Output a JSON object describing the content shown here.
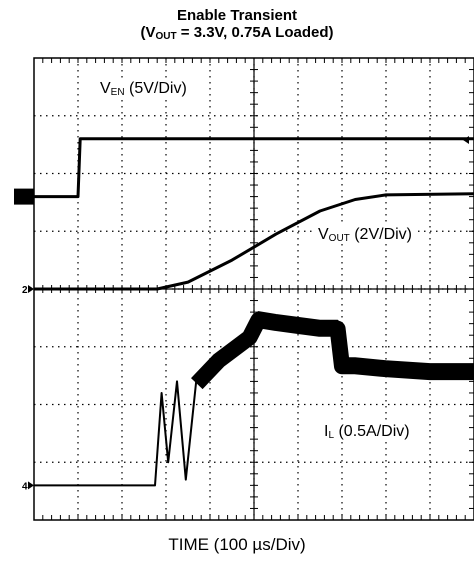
{
  "chart_data": {
    "type": "line",
    "title_line1": "Enable Transient",
    "title_line2": {
      "pre": "(V",
      "sub": "OUT",
      "post": " = 3.3V, 0.75A Loaded)"
    },
    "xlabel": "TIME (100 µs/Div)",
    "x_units": "div",
    "xlim": [
      0,
      10
    ],
    "grid": true,
    "channel_markers": [
      "2",
      "4"
    ],
    "series": [
      {
        "name": {
          "main": "V",
          "sub": "EN",
          "rest": " (5V/Div)"
        },
        "color": "#000000",
        "x": [
          0,
          1.0,
          1.05,
          10
        ],
        "y": [
          0,
          0,
          1.0,
          1.0
        ]
      },
      {
        "name": {
          "main": "V",
          "sub": "OUT",
          "rest": " (2V/Div)"
        },
        "color": "#000000",
        "x": [
          0,
          2.8,
          3.5,
          4.5,
          5.5,
          6.5,
          7.3,
          8.0,
          10
        ],
        "y": [
          0,
          0,
          0.12,
          0.5,
          0.95,
          1.35,
          1.55,
          1.63,
          1.65
        ]
      },
      {
        "name": {
          "main": "I",
          "sub": "L",
          "rest": " (0.5A/Div)"
        },
        "color": "#000000",
        "x": [
          0,
          2.75,
          2.9,
          3.05,
          3.25,
          3.45,
          3.7,
          4.2,
          4.9,
          5.1,
          5.5,
          6.0,
          6.5,
          6.9,
          7.0,
          7.3,
          8.0,
          9.0,
          10
        ],
        "y": [
          0,
          0,
          1.6,
          0.4,
          1.8,
          0.1,
          1.9,
          2.3,
          2.7,
          3.0,
          2.95,
          2.9,
          2.85,
          2.85,
          2.2,
          2.2,
          2.15,
          2.1,
          2.1
        ]
      }
    ]
  }
}
